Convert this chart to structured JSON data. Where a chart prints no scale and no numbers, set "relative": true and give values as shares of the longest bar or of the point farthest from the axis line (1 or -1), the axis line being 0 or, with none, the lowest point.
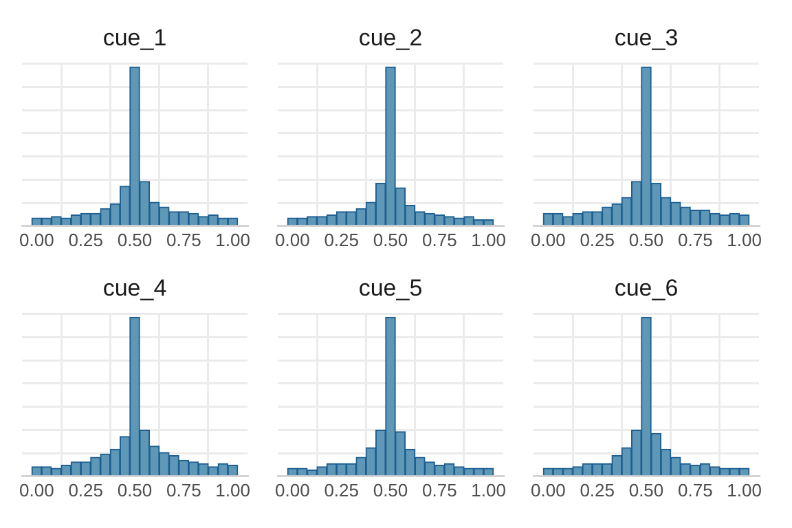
{
  "chart_data": [
    {
      "type": "bar",
      "title": "cue_1",
      "relative": true,
      "color": "#5f97b6",
      "grid": true,
      "x": [
        0,
        0.05,
        0.1,
        0.15,
        0.2,
        0.25,
        0.3,
        0.35,
        0.4,
        0.45,
        0.5,
        0.55,
        0.6,
        0.65,
        0.7,
        0.75,
        0.8,
        0.85,
        0.9,
        0.95,
        1
      ],
      "values": [
        0.05,
        0.05,
        0.06,
        0.05,
        0.07,
        0.08,
        0.08,
        0.11,
        0.14,
        0.25,
        1,
        0.28,
        0.15,
        0.12,
        0.09,
        0.09,
        0.08,
        0.06,
        0.07,
        0.05,
        0.05
      ],
      "xlim": [
        -0.075,
        1.075
      ],
      "xticks": [
        {
          "value": 0,
          "label": "0.00"
        },
        {
          "value": 0.25,
          "label": "0.25"
        },
        {
          "value": 0.5,
          "label": "0.50"
        },
        {
          "value": 0.75,
          "label": "0.75"
        },
        {
          "value": 1,
          "label": "1.00"
        }
      ]
    },
    {
      "type": "bar",
      "title": "cue_2",
      "relative": true,
      "color": "#5f97b6",
      "grid": true,
      "x": [
        0,
        0.05,
        0.1,
        0.15,
        0.2,
        0.25,
        0.3,
        0.35,
        0.4,
        0.45,
        0.5,
        0.55,
        0.6,
        0.65,
        0.7,
        0.75,
        0.8,
        0.85,
        0.9,
        0.95,
        1
      ],
      "values": [
        0.05,
        0.05,
        0.06,
        0.06,
        0.07,
        0.09,
        0.09,
        0.11,
        0.15,
        0.27,
        1,
        0.24,
        0.13,
        0.09,
        0.08,
        0.07,
        0.06,
        0.05,
        0.06,
        0.04,
        0.04
      ],
      "xlim": [
        -0.075,
        1.075
      ],
      "xticks": [
        {
          "value": 0,
          "label": "0.00"
        },
        {
          "value": 0.25,
          "label": "0.25"
        },
        {
          "value": 0.5,
          "label": "0.50"
        },
        {
          "value": 0.75,
          "label": "0.75"
        },
        {
          "value": 1,
          "label": "1.00"
        }
      ]
    },
    {
      "type": "bar",
      "title": "cue_3",
      "relative": true,
      "color": "#5f97b6",
      "grid": true,
      "x": [
        0,
        0.05,
        0.1,
        0.15,
        0.2,
        0.25,
        0.3,
        0.35,
        0.4,
        0.45,
        0.5,
        0.55,
        0.6,
        0.65,
        0.7,
        0.75,
        0.8,
        0.85,
        0.9,
        0.95,
        1
      ],
      "values": [
        0.08,
        0.08,
        0.06,
        0.08,
        0.09,
        0.09,
        0.12,
        0.14,
        0.18,
        0.28,
        1,
        0.27,
        0.18,
        0.15,
        0.12,
        0.1,
        0.1,
        0.08,
        0.07,
        0.08,
        0.07
      ],
      "xlim": [
        -0.075,
        1.075
      ],
      "xticks": [
        {
          "value": 0,
          "label": "0.00"
        },
        {
          "value": 0.25,
          "label": "0.25"
        },
        {
          "value": 0.5,
          "label": "0.50"
        },
        {
          "value": 0.75,
          "label": "0.75"
        },
        {
          "value": 1,
          "label": "1.00"
        }
      ]
    },
    {
      "type": "bar",
      "title": "cue_4",
      "relative": true,
      "color": "#5f97b6",
      "grid": true,
      "x": [
        0,
        0.05,
        0.1,
        0.15,
        0.2,
        0.25,
        0.3,
        0.35,
        0.4,
        0.45,
        0.5,
        0.55,
        0.6,
        0.65,
        0.7,
        0.75,
        0.8,
        0.85,
        0.9,
        0.95,
        1
      ],
      "values": [
        0.06,
        0.06,
        0.05,
        0.07,
        0.09,
        0.09,
        0.12,
        0.14,
        0.17,
        0.25,
        1,
        0.29,
        0.19,
        0.15,
        0.13,
        0.1,
        0.09,
        0.08,
        0.06,
        0.08,
        0.07
      ],
      "xlim": [
        -0.075,
        1.075
      ],
      "xticks": [
        {
          "value": 0,
          "label": "0.00"
        },
        {
          "value": 0.25,
          "label": "0.25"
        },
        {
          "value": 0.5,
          "label": "0.50"
        },
        {
          "value": 0.75,
          "label": "0.75"
        },
        {
          "value": 1,
          "label": "1.00"
        }
      ]
    },
    {
      "type": "bar",
      "title": "cue_5",
      "relative": true,
      "color": "#5f97b6",
      "grid": true,
      "x": [
        0,
        0.05,
        0.1,
        0.15,
        0.2,
        0.25,
        0.3,
        0.35,
        0.4,
        0.45,
        0.5,
        0.55,
        0.6,
        0.65,
        0.7,
        0.75,
        0.8,
        0.85,
        0.9,
        0.95,
        1
      ],
      "values": [
        0.05,
        0.05,
        0.04,
        0.06,
        0.08,
        0.08,
        0.08,
        0.12,
        0.18,
        0.29,
        1,
        0.28,
        0.17,
        0.12,
        0.09,
        0.07,
        0.08,
        0.06,
        0.05,
        0.05,
        0.05
      ],
      "xlim": [
        -0.075,
        1.075
      ],
      "xticks": [
        {
          "value": 0,
          "label": "0.00"
        },
        {
          "value": 0.25,
          "label": "0.25"
        },
        {
          "value": 0.5,
          "label": "0.50"
        },
        {
          "value": 0.75,
          "label": "0.75"
        },
        {
          "value": 1,
          "label": "1.00"
        }
      ]
    },
    {
      "type": "bar",
      "title": "cue_6",
      "relative": true,
      "color": "#5f97b6",
      "grid": true,
      "x": [
        0,
        0.05,
        0.1,
        0.15,
        0.2,
        0.25,
        0.3,
        0.35,
        0.4,
        0.45,
        0.5,
        0.55,
        0.6,
        0.65,
        0.7,
        0.75,
        0.8,
        0.85,
        0.9,
        0.95,
        1
      ],
      "values": [
        0.05,
        0.05,
        0.05,
        0.06,
        0.08,
        0.08,
        0.08,
        0.13,
        0.18,
        0.29,
        1,
        0.27,
        0.17,
        0.12,
        0.08,
        0.07,
        0.08,
        0.06,
        0.05,
        0.05,
        0.05
      ],
      "xlim": [
        -0.075,
        1.075
      ],
      "xticks": [
        {
          "value": 0,
          "label": "0.00"
        },
        {
          "value": 0.25,
          "label": "0.25"
        },
        {
          "value": 0.5,
          "label": "0.50"
        },
        {
          "value": 0.75,
          "label": "0.75"
        },
        {
          "value": 1,
          "label": "1.00"
        }
      ]
    }
  ]
}
